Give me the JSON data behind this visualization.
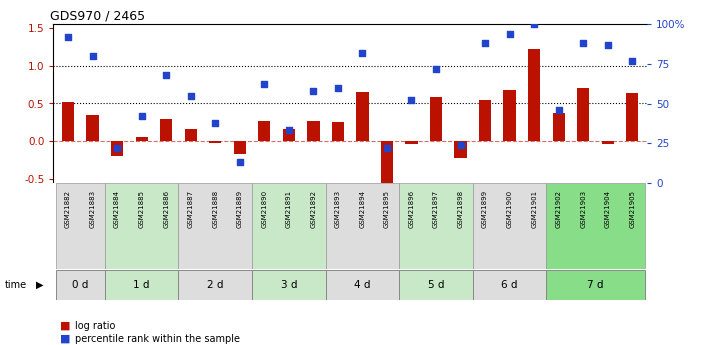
{
  "title": "GDS970 / 2465",
  "samples": [
    "GSM21882",
    "GSM21883",
    "GSM21884",
    "GSM21885",
    "GSM21886",
    "GSM21887",
    "GSM21888",
    "GSM21889",
    "GSM21890",
    "GSM21891",
    "GSM21892",
    "GSM21893",
    "GSM21894",
    "GSM21895",
    "GSM21896",
    "GSM21897",
    "GSM21898",
    "GSM21899",
    "GSM21900",
    "GSM21901",
    "GSM21902",
    "GSM21903",
    "GSM21904",
    "GSM21905"
  ],
  "log_ratio": [
    0.52,
    0.35,
    -0.2,
    0.06,
    0.29,
    0.16,
    -0.02,
    -0.17,
    0.27,
    0.16,
    0.27,
    0.25,
    0.65,
    -0.62,
    -0.04,
    0.58,
    -0.22,
    0.55,
    0.68,
    1.22,
    0.37,
    0.7,
    -0.03,
    0.64
  ],
  "percentile_pct": [
    92,
    80,
    22,
    42,
    68,
    55,
    38,
    13,
    62,
    33,
    58,
    60,
    82,
    22,
    52,
    72,
    24,
    88,
    94,
    100,
    46,
    88,
    87,
    77
  ],
  "time_groups": [
    {
      "label": "0 d",
      "start": 0,
      "end": 1,
      "color": "#dddddd"
    },
    {
      "label": "1 d",
      "start": 2,
      "end": 4,
      "color": "#c8e8c8"
    },
    {
      "label": "2 d",
      "start": 5,
      "end": 7,
      "color": "#dddddd"
    },
    {
      "label": "3 d",
      "start": 8,
      "end": 10,
      "color": "#c8e8c8"
    },
    {
      "label": "4 d",
      "start": 11,
      "end": 13,
      "color": "#dddddd"
    },
    {
      "label": "5 d",
      "start": 14,
      "end": 16,
      "color": "#c8e8c8"
    },
    {
      "label": "6 d",
      "start": 17,
      "end": 19,
      "color": "#dddddd"
    },
    {
      "label": "7 d",
      "start": 20,
      "end": 23,
      "color": "#88dd88"
    }
  ],
  "bar_color": "#bb1100",
  "dot_color": "#2244cc",
  "ylim_left": [
    -0.55,
    1.55
  ],
  "ylim_right": [
    0,
    100
  ],
  "left_ticks": [
    -0.5,
    0.0,
    0.5,
    1.0,
    1.5
  ],
  "right_ticks": [
    0,
    25,
    50,
    75,
    100
  ],
  "right_tick_labels": [
    "0",
    "25",
    "50",
    "75",
    "100%"
  ],
  "dotted_lines": [
    0.5,
    1.0
  ],
  "dashed_line": 0.0,
  "bar_width": 0.5
}
